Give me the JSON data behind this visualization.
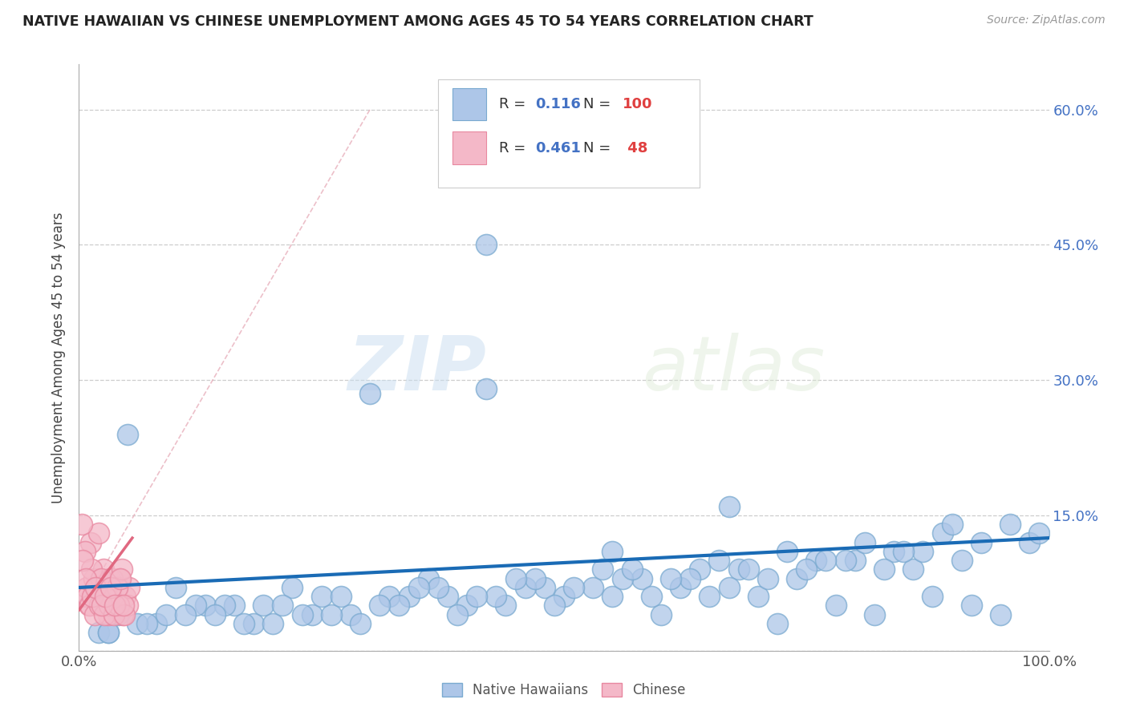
{
  "title": "NATIVE HAWAIIAN VS CHINESE UNEMPLOYMENT AMONG AGES 45 TO 54 YEARS CORRELATION CHART",
  "source": "Source: ZipAtlas.com",
  "ylabel": "Unemployment Among Ages 45 to 54 years",
  "xlim": [
    0,
    1.0
  ],
  "ylim": [
    0,
    0.65
  ],
  "xticks": [
    0.0,
    0.25,
    0.5,
    0.75,
    1.0
  ],
  "xticklabels": [
    "0.0%",
    "",
    "",
    "",
    "100.0%"
  ],
  "yticks": [
    0.0,
    0.15,
    0.3,
    0.45,
    0.6
  ],
  "yticklabels_right": [
    "",
    "15.0%",
    "30.0%",
    "45.0%",
    "60.0%"
  ],
  "background_color": "#ffffff",
  "grid_color": "#c8c8c8",
  "watermark_zip": "ZIP",
  "watermark_atlas": "atlas",
  "legend_R1": "0.116",
  "legend_N1": "100",
  "legend_R2": "0.461",
  "legend_N2": "48",
  "nh_color": "#adc6e8",
  "nh_edge_color": "#7aaad0",
  "ch_color": "#f4b8c8",
  "ch_edge_color": "#e888a0",
  "nh_line_color": "#1a6bb5",
  "ch_line_color": "#e06880",
  "ch_dash_color": "#e8b0bc",
  "nh_scatter_x": [
    0.3,
    0.05,
    0.13,
    0.1,
    0.04,
    0.08,
    0.42,
    0.52,
    0.16,
    0.28,
    0.22,
    0.38,
    0.6,
    0.65,
    0.7,
    0.72,
    0.78,
    0.82,
    0.88,
    0.92,
    0.95,
    0.12,
    0.18,
    0.24,
    0.32,
    0.36,
    0.44,
    0.48,
    0.55,
    0.58,
    0.62,
    0.68,
    0.74,
    0.8,
    0.86,
    0.98,
    0.02,
    0.06,
    0.09,
    0.15,
    0.2,
    0.26,
    0.34,
    0.4,
    0.46,
    0.5,
    0.56,
    0.64,
    0.76,
    0.84,
    0.03,
    0.07,
    0.11,
    0.17,
    0.23,
    0.29,
    0.33,
    0.39,
    0.43,
    0.49,
    0.53,
    0.59,
    0.63,
    0.67,
    0.71,
    0.75,
    0.79,
    0.83,
    0.87,
    0.91,
    0.14,
    0.19,
    0.25,
    0.31,
    0.37,
    0.41,
    0.47,
    0.51,
    0.57,
    0.61,
    0.66,
    0.69,
    0.73,
    0.77,
    0.81,
    0.85,
    0.89,
    0.93,
    0.96,
    0.99,
    0.21,
    0.27,
    0.35,
    0.45,
    0.54,
    0.03,
    0.42,
    0.67,
    0.9,
    0.55
  ],
  "nh_scatter_y": [
    0.285,
    0.24,
    0.05,
    0.07,
    0.04,
    0.03,
    0.29,
    0.565,
    0.05,
    0.04,
    0.07,
    0.06,
    0.04,
    0.06,
    0.06,
    0.03,
    0.05,
    0.04,
    0.06,
    0.05,
    0.04,
    0.05,
    0.03,
    0.04,
    0.06,
    0.08,
    0.05,
    0.07,
    0.06,
    0.08,
    0.07,
    0.09,
    0.08,
    0.1,
    0.09,
    0.12,
    0.02,
    0.03,
    0.04,
    0.05,
    0.03,
    0.04,
    0.06,
    0.05,
    0.07,
    0.06,
    0.08,
    0.09,
    0.1,
    0.11,
    0.02,
    0.03,
    0.04,
    0.03,
    0.04,
    0.03,
    0.05,
    0.04,
    0.06,
    0.05,
    0.07,
    0.06,
    0.08,
    0.07,
    0.08,
    0.09,
    0.1,
    0.09,
    0.11,
    0.1,
    0.04,
    0.05,
    0.06,
    0.05,
    0.07,
    0.06,
    0.08,
    0.07,
    0.09,
    0.08,
    0.1,
    0.09,
    0.11,
    0.1,
    0.12,
    0.11,
    0.13,
    0.12,
    0.14,
    0.13,
    0.05,
    0.06,
    0.07,
    0.08,
    0.09,
    0.02,
    0.45,
    0.16,
    0.14,
    0.11
  ],
  "ch_scatter_x": [
    0.005,
    0.008,
    0.01,
    0.012,
    0.015,
    0.018,
    0.02,
    0.022,
    0.025,
    0.028,
    0.03,
    0.032,
    0.035,
    0.038,
    0.04,
    0.042,
    0.045,
    0.048,
    0.05,
    0.052,
    0.003,
    0.006,
    0.009,
    0.011,
    0.013,
    0.016,
    0.019,
    0.021,
    0.023,
    0.026,
    0.029,
    0.031,
    0.034,
    0.036,
    0.039,
    0.041,
    0.044,
    0.047,
    0.004,
    0.007,
    0.014,
    0.017,
    0.024,
    0.027,
    0.033,
    0.037,
    0.043,
    0.046
  ],
  "ch_scatter_y": [
    0.06,
    0.07,
    0.05,
    0.12,
    0.08,
    0.06,
    0.13,
    0.05,
    0.09,
    0.05,
    0.04,
    0.08,
    0.06,
    0.05,
    0.07,
    0.08,
    0.04,
    0.06,
    0.05,
    0.07,
    0.14,
    0.11,
    0.06,
    0.05,
    0.09,
    0.04,
    0.07,
    0.05,
    0.08,
    0.04,
    0.06,
    0.05,
    0.08,
    0.04,
    0.07,
    0.05,
    0.09,
    0.04,
    0.1,
    0.08,
    0.06,
    0.07,
    0.05,
    0.06,
    0.07,
    0.05,
    0.08,
    0.05
  ]
}
